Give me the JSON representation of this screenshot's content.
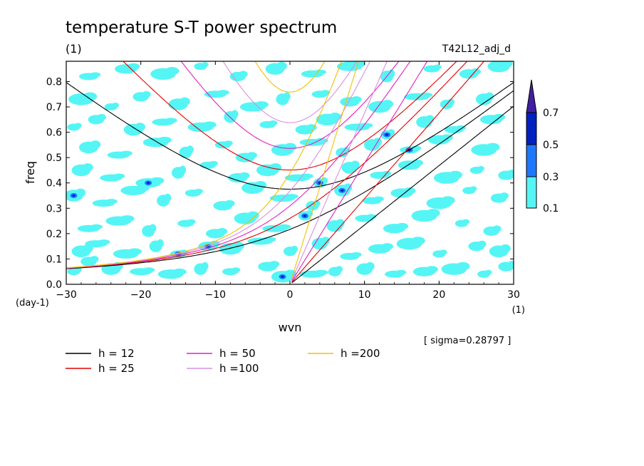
{
  "chart_data": {
    "type": "heatmap",
    "title": "temperature S-T power spectrum",
    "subtitle": "(1)",
    "run_label": "T42L12_adj_d",
    "xlabel": "wvn",
    "x_unit": "(1)",
    "ylabel": "freq",
    "y_unit": "(day-1)",
    "sigma_text": "[ sigma=0.28797 ]",
    "xlim": [
      -30,
      30
    ],
    "ylim": [
      0.0,
      0.88
    ],
    "xticks": [
      -30,
      -20,
      -10,
      0,
      10,
      20,
      30
    ],
    "yticks": [
      0.0,
      0.1,
      0.2,
      0.3,
      0.4,
      0.5,
      0.6,
      0.7,
      0.8
    ],
    "xtick_labels": [
      "−30",
      "−20",
      "−10",
      "0",
      "10",
      "20",
      "30"
    ],
    "ytick_labels": [
      "0.0",
      "0.1",
      "0.2",
      "0.3",
      "0.4",
      "0.5",
      "0.6",
      "0.7",
      "0.8"
    ],
    "colorbar": {
      "levels": [
        0.1,
        0.3,
        0.5,
        0.7
      ],
      "labels": [
        "0.1",
        "0.3",
        "0.5",
        "0.7"
      ],
      "colors": [
        "#55f5f5",
        "#1e78ff",
        "#0020c0",
        "#4020a0"
      ]
    },
    "dispersion_curves": [
      {
        "name": "h = 12",
        "color": "#000000",
        "h": 12
      },
      {
        "name": "h = 25",
        "color": "#e00000",
        "h": 25
      },
      {
        "name": "h = 50",
        "color": "#e020c0",
        "h": 50
      },
      {
        "name": "h =100",
        "color": "#d890e0",
        "h": 100
      },
      {
        "name": "h =200",
        "color": "#f0c000",
        "h": 200
      }
    ],
    "blobs": [
      [
        -29,
        0.05,
        1
      ],
      [
        -27,
        0.09,
        1
      ],
      [
        -24,
        0.06,
        1
      ],
      [
        -20,
        0.05,
        1
      ],
      [
        -16,
        0.04,
        1
      ],
      [
        -12,
        0.06,
        1
      ],
      [
        -8,
        0.05,
        1
      ],
      [
        -3,
        0.07,
        1
      ],
      [
        -1,
        0.03,
        2
      ],
      [
        3,
        0.04,
        1
      ],
      [
        6,
        0.05,
        1
      ],
      [
        10,
        0.06,
        1
      ],
      [
        14,
        0.04,
        1
      ],
      [
        18,
        0.05,
        1
      ],
      [
        22,
        0.06,
        1
      ],
      [
        26,
        0.04,
        1
      ],
      [
        29,
        0.07,
        1
      ],
      [
        -28,
        0.13,
        1
      ],
      [
        -26,
        0.16,
        1
      ],
      [
        -22,
        0.12,
        1
      ],
      [
        -18,
        0.15,
        1
      ],
      [
        -15,
        0.12,
        2
      ],
      [
        -11,
        0.15,
        2
      ],
      [
        -8,
        0.14,
        1
      ],
      [
        -4,
        0.17,
        1
      ],
      [
        0,
        0.13,
        1
      ],
      [
        4,
        0.16,
        1
      ],
      [
        8,
        0.11,
        1
      ],
      [
        12,
        0.14,
        1
      ],
      [
        16,
        0.16,
        1
      ],
      [
        20,
        0.12,
        1
      ],
      [
        25,
        0.15,
        1
      ],
      [
        28,
        0.13,
        1
      ],
      [
        -27,
        0.22,
        1
      ],
      [
        -23,
        0.25,
        1
      ],
      [
        -19,
        0.21,
        1
      ],
      [
        -14,
        0.24,
        1
      ],
      [
        -10,
        0.2,
        1
      ],
      [
        -6,
        0.26,
        1
      ],
      [
        -2,
        0.22,
        1
      ],
      [
        2,
        0.27,
        2
      ],
      [
        6,
        0.23,
        1
      ],
      [
        10,
        0.26,
        1
      ],
      [
        14,
        0.22,
        1
      ],
      [
        18,
        0.27,
        1
      ],
      [
        23,
        0.24,
        1
      ],
      [
        27,
        0.21,
        1
      ],
      [
        -29,
        0.35,
        2
      ],
      [
        -25,
        0.32,
        1
      ],
      [
        -21,
        0.37,
        1
      ],
      [
        -17,
        0.33,
        1
      ],
      [
        -13,
        0.36,
        1
      ],
      [
        -9,
        0.31,
        1
      ],
      [
        -5,
        0.38,
        1
      ],
      [
        -1,
        0.34,
        1
      ],
      [
        3,
        0.31,
        1
      ],
      [
        7,
        0.37,
        2
      ],
      [
        11,
        0.33,
        1
      ],
      [
        15,
        0.36,
        1
      ],
      [
        20,
        0.32,
        1
      ],
      [
        24,
        0.37,
        1
      ],
      [
        28,
        0.34,
        1
      ],
      [
        -28,
        0.45,
        1
      ],
      [
        -24,
        0.42,
        1
      ],
      [
        -19,
        0.4,
        2
      ],
      [
        -15,
        0.44,
        1
      ],
      [
        -11,
        0.47,
        1
      ],
      [
        -7,
        0.42,
        1
      ],
      [
        -3,
        0.45,
        1
      ],
      [
        1,
        0.42,
        1
      ],
      [
        4,
        0.4,
        2
      ],
      [
        8,
        0.46,
        1
      ],
      [
        12,
        0.43,
        1
      ],
      [
        16,
        0.47,
        1
      ],
      [
        21,
        0.42,
        1
      ],
      [
        25,
        0.45,
        1
      ],
      [
        29,
        0.43,
        1
      ],
      [
        -27,
        0.54,
        1
      ],
      [
        -23,
        0.51,
        1
      ],
      [
        -18,
        0.56,
        1
      ],
      [
        -14,
        0.52,
        1
      ],
      [
        -9,
        0.55,
        1
      ],
      [
        -6,
        0.5,
        1
      ],
      [
        -1,
        0.53,
        1
      ],
      [
        3,
        0.56,
        1
      ],
      [
        7,
        0.52,
        1
      ],
      [
        11,
        0.55,
        1
      ],
      [
        16,
        0.53,
        2
      ],
      [
        20,
        0.57,
        1
      ],
      [
        26,
        0.53,
        1
      ],
      [
        -29,
        0.62,
        1
      ],
      [
        -26,
        0.65,
        1
      ],
      [
        -21,
        0.61,
        1
      ],
      [
        -17,
        0.64,
        1
      ],
      [
        -12,
        0.62,
        1
      ],
      [
        -8,
        0.66,
        1
      ],
      [
        -3,
        0.63,
        1
      ],
      [
        2,
        0.61,
        1
      ],
      [
        5,
        0.65,
        1
      ],
      [
        9,
        0.62,
        1
      ],
      [
        13,
        0.59,
        2
      ],
      [
        18,
        0.64,
        1
      ],
      [
        22,
        0.61,
        1
      ],
      [
        27,
        0.65,
        1
      ],
      [
        -28,
        0.73,
        1
      ],
      [
        -24,
        0.7,
        1
      ],
      [
        -20,
        0.74,
        1
      ],
      [
        -15,
        0.71,
        1
      ],
      [
        -10,
        0.75,
        1
      ],
      [
        -5,
        0.7,
        1
      ],
      [
        -1,
        0.73,
        1
      ],
      [
        4,
        0.75,
        1
      ],
      [
        8,
        0.72,
        1
      ],
      [
        12,
        0.7,
        1
      ],
      [
        17,
        0.74,
        1
      ],
      [
        21,
        0.71,
        1
      ],
      [
        26,
        0.73,
        1
      ],
      [
        -27,
        0.82,
        1
      ],
      [
        -22,
        0.85,
        1
      ],
      [
        -17,
        0.83,
        1
      ],
      [
        -12,
        0.86,
        1
      ],
      [
        -7,
        0.82,
        1
      ],
      [
        -2,
        0.85,
        1
      ],
      [
        3,
        0.83,
        1
      ],
      [
        8,
        0.86,
        1
      ],
      [
        13,
        0.82,
        1
      ],
      [
        19,
        0.85,
        1
      ],
      [
        24,
        0.83,
        1
      ],
      [
        28,
        0.86,
        1
      ]
    ]
  }
}
